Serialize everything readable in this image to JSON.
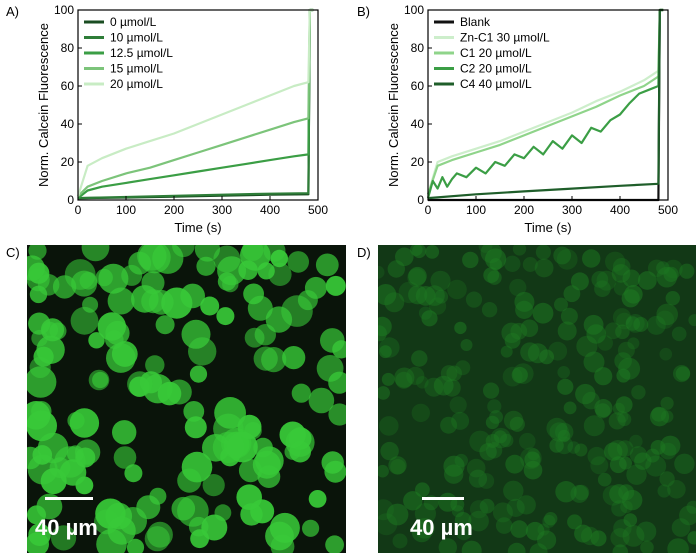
{
  "panels": {
    "a": {
      "letter": "A)"
    },
    "b": {
      "letter": "B)"
    },
    "c": {
      "letter": "C)",
      "scale_bar": "40 µm"
    },
    "d": {
      "letter": "D)",
      "scale_bar": "40 µm"
    }
  },
  "colors": {
    "black": "#111111",
    "darkest_green": "#1f5e2a",
    "dark_green": "#2e8b3f",
    "mid_green": "#4db356",
    "light_green": "#8fd48a",
    "pale_green": "#cdeecb",
    "cells_bright": "#38c938",
    "cells_dim": "#1e7a22"
  },
  "chart_data": [
    {
      "type": "line",
      "xlabel": "Time (s)",
      "ylabel": "Norm. Calcein Fluorescence",
      "xlim": [
        0,
        500
      ],
      "ylim": [
        0,
        100
      ],
      "xticks": [
        0,
        100,
        200,
        300,
        400,
        500
      ],
      "yticks": [
        0,
        20,
        40,
        60,
        80,
        100
      ],
      "legend_position": "top-left",
      "series": [
        {
          "name": "0 µmol/L",
          "color": "#1a4d22",
          "x": [
            0,
            100,
            200,
            300,
            400,
            480,
            483,
            490
          ],
          "y": [
            1,
            1.3,
            1.8,
            2.3,
            2.8,
            3,
            100,
            100
          ]
        },
        {
          "name": "10 µmol/L",
          "color": "#2e7d38",
          "x": [
            0,
            100,
            200,
            300,
            400,
            480,
            483,
            490
          ],
          "y": [
            1,
            1.6,
            2.2,
            2.8,
            3.3,
            3.6,
            100,
            100
          ]
        },
        {
          "name": "12.5 µmol/L",
          "color": "#3b9e45",
          "x": [
            0,
            20,
            50,
            100,
            150,
            200,
            250,
            300,
            350,
            400,
            450,
            480,
            483,
            490
          ],
          "y": [
            1,
            5,
            7,
            9,
            11,
            13,
            15,
            17,
            19,
            21,
            23,
            24,
            100,
            100
          ]
        },
        {
          "name": "15 µmol/L",
          "color": "#7cc47a",
          "x": [
            0,
            20,
            50,
            100,
            150,
            200,
            250,
            300,
            350,
            400,
            450,
            480,
            483,
            490
          ],
          "y": [
            2,
            7,
            10,
            14,
            17,
            21,
            25,
            29,
            33,
            37,
            41,
            43,
            100,
            100
          ]
        },
        {
          "name": "20 µmol/L",
          "color": "#c8ecc4",
          "x": [
            0,
            20,
            50,
            100,
            150,
            200,
            250,
            300,
            350,
            400,
            450,
            480,
            483,
            490
          ],
          "y": [
            2,
            18,
            22,
            27,
            31,
            35,
            40,
            45,
            50,
            55,
            60,
            62,
            100,
            100
          ]
        }
      ]
    },
    {
      "type": "line",
      "xlabel": "Time (s)",
      "ylabel": "Norm. Calcein Fluorescence",
      "xlim": [
        0,
        500
      ],
      "ylim": [
        0,
        100
      ],
      "xticks": [
        0,
        100,
        200,
        300,
        400,
        500
      ],
      "yticks": [
        0,
        20,
        40,
        60,
        80,
        100
      ],
      "legend_position": "top-left",
      "series": [
        {
          "name": "Blank",
          "color": "#111111",
          "x": [
            0,
            100,
            200,
            300,
            400,
            480,
            483,
            490
          ],
          "y": [
            0,
            0,
            0,
            0,
            0,
            0,
            100,
            100
          ]
        },
        {
          "name": "Zn-C1 30 µmol/L",
          "color": "#cdeecb",
          "x": [
            0,
            20,
            50,
            100,
            150,
            200,
            250,
            300,
            350,
            400,
            450,
            480,
            483,
            490
          ],
          "y": [
            3,
            20,
            23,
            27,
            31,
            36,
            41,
            46,
            52,
            57,
            63,
            68,
            100,
            100
          ]
        },
        {
          "name": "C1 20 µmol/L",
          "color": "#8fd48a",
          "x": [
            0,
            20,
            50,
            100,
            150,
            200,
            250,
            300,
            350,
            400,
            450,
            480,
            483,
            490
          ],
          "y": [
            3,
            18,
            21,
            25,
            29,
            34,
            39,
            44,
            49,
            55,
            60,
            65,
            100,
            100
          ]
        },
        {
          "name": "C2 20 µmol/L",
          "color": "#3b9e45",
          "x": [
            0,
            10,
            20,
            30,
            40,
            50,
            60,
            80,
            100,
            120,
            140,
            160,
            180,
            200,
            220,
            240,
            260,
            280,
            300,
            320,
            340,
            360,
            380,
            400,
            420,
            440,
            460,
            480,
            483,
            490
          ],
          "y": [
            1,
            10,
            6,
            12,
            7,
            11,
            14,
            12,
            17,
            14,
            20,
            18,
            24,
            22,
            28,
            24,
            31,
            27,
            34,
            30,
            38,
            36,
            42,
            45,
            51,
            56,
            58,
            60,
            100,
            100
          ]
        },
        {
          "name": "C4 40 µmol/L",
          "color": "#1f5e2a",
          "x": [
            0,
            100,
            200,
            300,
            400,
            480,
            483,
            490
          ],
          "y": [
            1,
            3,
            4.5,
            6,
            7.5,
            8.5,
            100,
            100
          ]
        }
      ]
    }
  ]
}
